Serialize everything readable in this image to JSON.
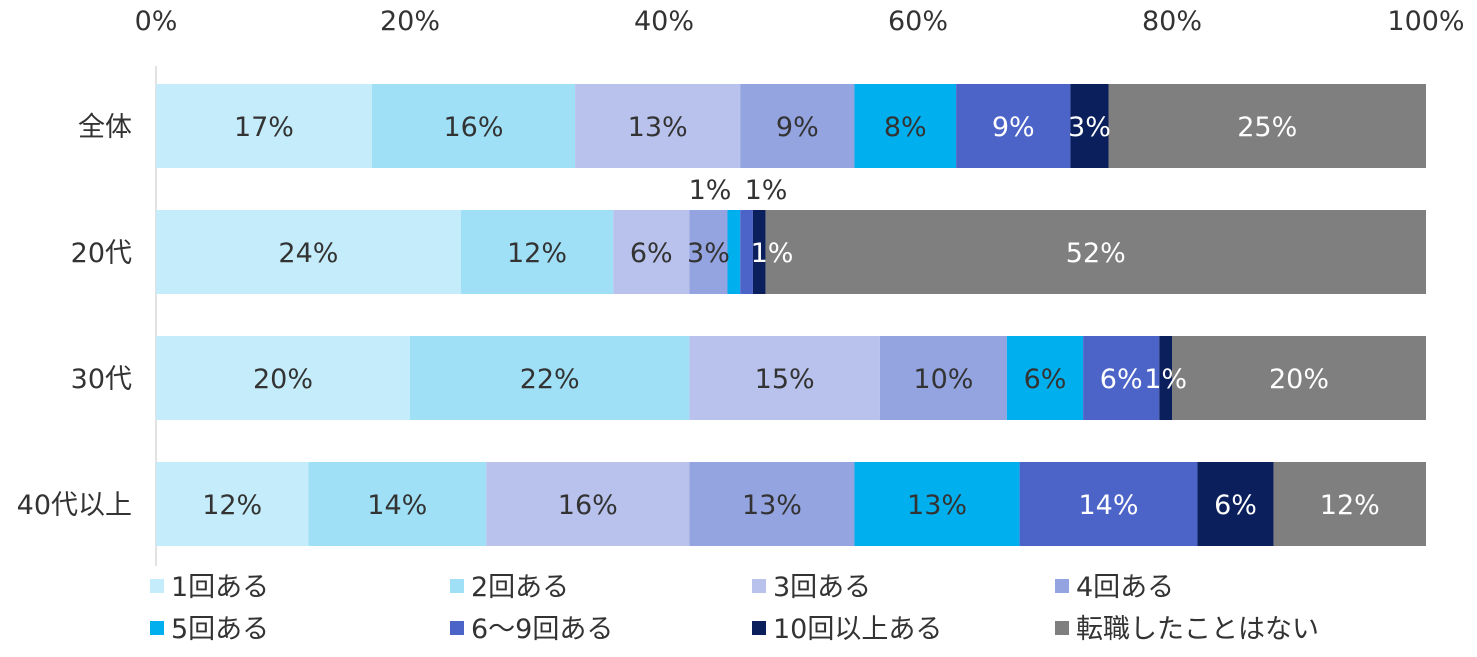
{
  "chart_data": {
    "type": "bar",
    "orientation": "horizontal",
    "stacked": true,
    "xlim": [
      0,
      100
    ],
    "x_ticks": [
      "0%",
      "20%",
      "40%",
      "60%",
      "80%",
      "100%"
    ],
    "categories": [
      "全体",
      "20代",
      "30代",
      "40代以上"
    ],
    "series": [
      {
        "name": "1回ある",
        "color": "#c5ecfa",
        "values": [
          17,
          24,
          20,
          12
        ],
        "labels": [
          "17%",
          "24%",
          "20%",
          "12%"
        ]
      },
      {
        "name": "2回ある",
        "color": "#9fe0f7",
        "values": [
          16,
          12,
          22,
          14
        ],
        "labels": [
          "16%",
          "12%",
          "22%",
          "14%"
        ]
      },
      {
        "name": "3回ある",
        "color": "#b8c2ec",
        "values": [
          13,
          6,
          15,
          16
        ],
        "labels": [
          "13%",
          "6%",
          "15%",
          "16%"
        ]
      },
      {
        "name": "4回ある",
        "color": "#94a4e0",
        "values": [
          9,
          3,
          10,
          13
        ],
        "labels": [
          "9%",
          "3%",
          "10%",
          "13%"
        ]
      },
      {
        "name": "5回ある",
        "color": "#00b0ee",
        "values": [
          8,
          1,
          6,
          13
        ],
        "labels": [
          "8%",
          "1%",
          "6%",
          "13%"
        ]
      },
      {
        "name": "6～9回ある",
        "color": "#4c64c8",
        "values": [
          9,
          1,
          6,
          14
        ],
        "labels": [
          "9%",
          "1%",
          "6%",
          "14%"
        ]
      },
      {
        "name": "10回以上ある",
        "color": "#0a1f5c",
        "values": [
          3,
          1,
          1,
          6
        ],
        "labels": [
          "3%",
          "1%",
          "1%",
          "6%"
        ]
      },
      {
        "name": "転職したことはない",
        "color": "#7f7f7f",
        "values": [
          25,
          52,
          20,
          12
        ],
        "labels": [
          "25%",
          "52%",
          "20%",
          "12%"
        ]
      }
    ],
    "legend_position": "bottom",
    "grid": false
  }
}
